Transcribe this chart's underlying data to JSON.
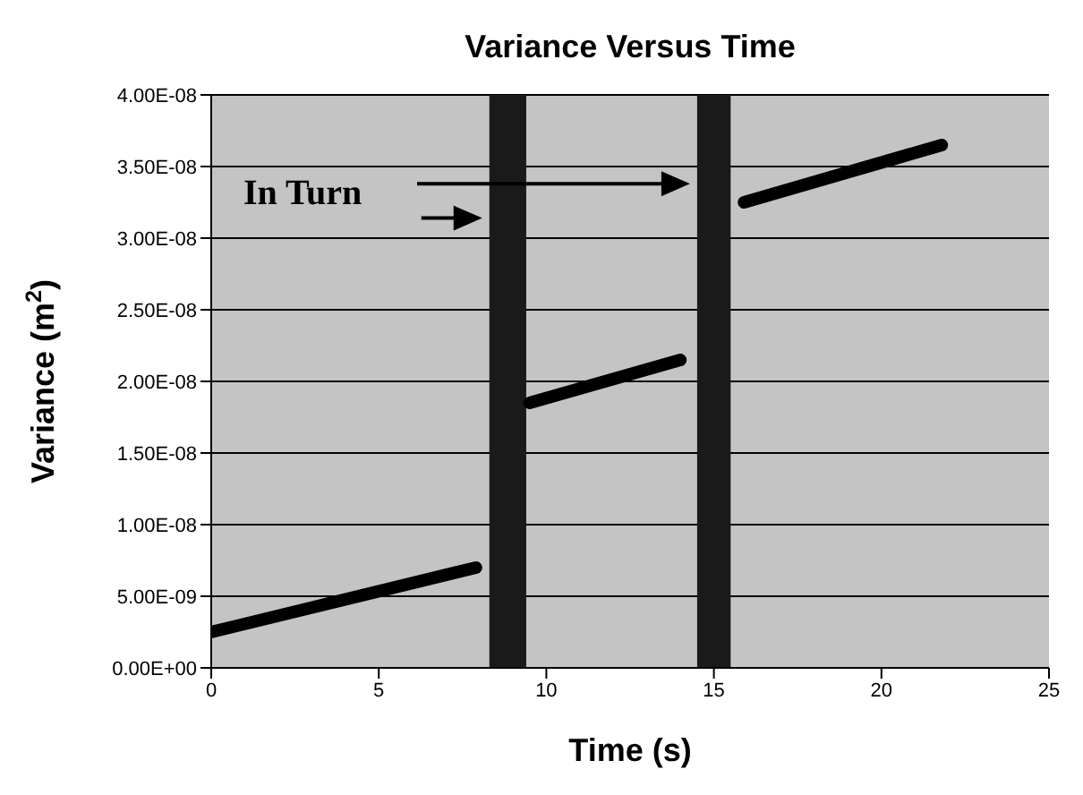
{
  "chart_data": {
    "type": "line",
    "title": "Variance Versus Time",
    "xlabel": "Time (s)",
    "ylabel": "Variance (m$^{2}$)",
    "xlim": [
      0,
      25
    ],
    "xticks": [
      0,
      5,
      10,
      15,
      20,
      25
    ],
    "ylim": [
      0,
      4e-08
    ],
    "yticks": [
      {
        "value": 0,
        "label": "0.00E+00"
      },
      {
        "value": 5e-09,
        "label": "5.00E-09"
      },
      {
        "value": 1e-08,
        "label": "1.00E-08"
      },
      {
        "value": 1.5e-08,
        "label": "1.50E-08"
      },
      {
        "value": 2e-08,
        "label": "2.00E-08"
      },
      {
        "value": 2.5e-08,
        "label": "2.50E-08"
      },
      {
        "value": 3e-08,
        "label": "3.00E-08"
      },
      {
        "value": 3.5e-08,
        "label": "3.50E-08"
      },
      {
        "value": 4e-08,
        "label": "4.00E-08"
      }
    ],
    "series": [
      {
        "color": "#000000",
        "x": [
          0,
          7.9
        ],
        "values": [
          2.5e-09,
          7e-09
        ]
      },
      {
        "color": "#000000",
        "x": [
          9.5,
          14.0
        ],
        "values": [
          1.85e-08,
          2.15e-08
        ]
      },
      {
        "color": "#000000",
        "x": [
          15.9,
          21.8
        ],
        "values": [
          3.25e-08,
          3.65e-08
        ]
      }
    ],
    "bands": [
      {
        "axis": "x",
        "from": 8.3,
        "to": 9.4,
        "color": "#1a1a1a"
      },
      {
        "axis": "x",
        "from": 14.5,
        "to": 15.5,
        "color": "#1a1a1a"
      }
    ],
    "annotations": [
      "In Turn"
    ],
    "grid": "y",
    "marker": "none",
    "line_style": "solid"
  }
}
